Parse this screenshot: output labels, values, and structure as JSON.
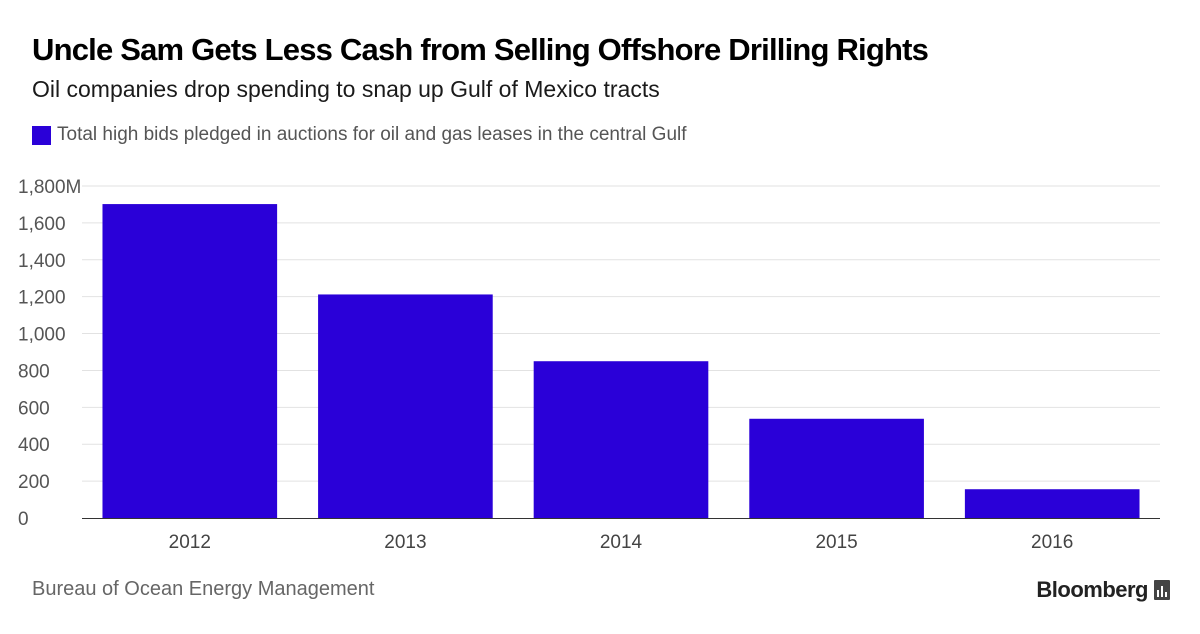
{
  "title": "Uncle Sam Gets Less Cash from Selling Offshore Drilling Rights",
  "subtitle": "Oil companies drop spending to snap up Gulf of Mexico tracts",
  "legend": {
    "label": "Total high bids pledged in auctions for oil and gas leases in the central Gulf",
    "color": "#2a00d8"
  },
  "source": "Bureau of Ocean Energy Management",
  "brand": "Bloomberg",
  "brand_icon": "bloomberg-terminal-icon",
  "chart_data": {
    "type": "bar",
    "categories": [
      "2012",
      "2013",
      "2014",
      "2015",
      "2016"
    ],
    "series": [
      {
        "values": [
          1702,
          1212,
          850,
          538,
          156
        ],
        "color": "#2a00d8"
      }
    ],
    "ylim": [
      0,
      1800
    ],
    "yticks": [
      0,
      200,
      400,
      600,
      800,
      1000,
      1200,
      1400,
      1600,
      1800
    ],
    "ytick_labels": [
      "0",
      "200",
      "400",
      "600",
      "800",
      "1,000",
      "1,200",
      "1,400",
      "1,600",
      "1,800M"
    ],
    "grid": true,
    "legend_position": "top-left"
  }
}
